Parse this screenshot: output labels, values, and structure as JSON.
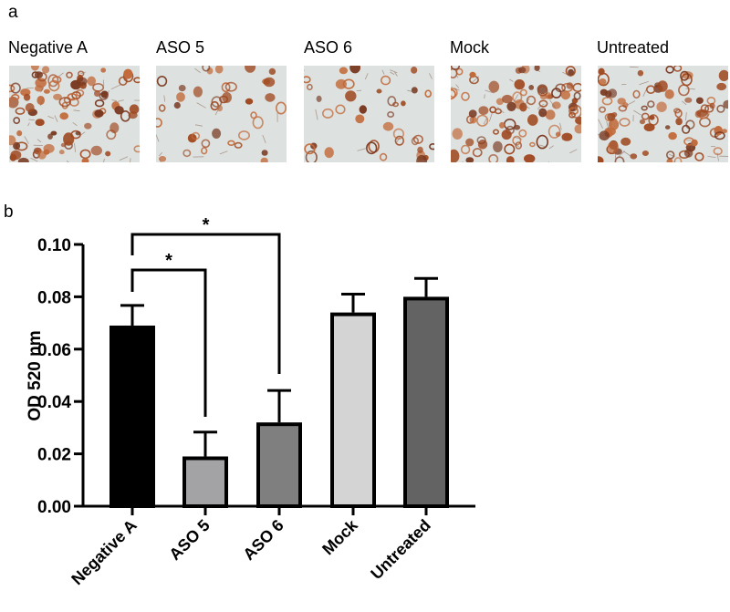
{
  "panel_a": {
    "letter": "a",
    "images": [
      {
        "label": "Negative A",
        "density": "high"
      },
      {
        "label": "ASO 5",
        "density": "low"
      },
      {
        "label": "ASO 6",
        "density": "low"
      },
      {
        "label": "Mock",
        "density": "high"
      },
      {
        "label": "Untreated",
        "density": "high"
      }
    ]
  },
  "panel_b": {
    "letter": "b"
  },
  "chart_data": {
    "type": "bar",
    "title": "",
    "xlabel": "",
    "ylabel": "OD 520 nm",
    "ylim": [
      0,
      0.1
    ],
    "yticks": [
      "0.00",
      "0.02",
      "0.04",
      "0.06",
      "0.08",
      "0.10"
    ],
    "categories": [
      "Negative A",
      "ASO 5",
      "ASO 6",
      "Mock",
      "Untreated"
    ],
    "values": [
      0.069,
      0.019,
      0.032,
      0.074,
      0.08
    ],
    "errors": [
      0.0077,
      0.0093,
      0.0122,
      0.007,
      0.007
    ],
    "colors": [
      "#000000",
      "#a3a3a6",
      "#7f7f7f",
      "#d4d4d4",
      "#636363"
    ],
    "significance": [
      {
        "from": "Negative A",
        "to": "ASO 5",
        "label": "*"
      },
      {
        "from": "Negative A",
        "to": "ASO 6",
        "label": "*"
      }
    ],
    "grid": false,
    "legend": null
  }
}
